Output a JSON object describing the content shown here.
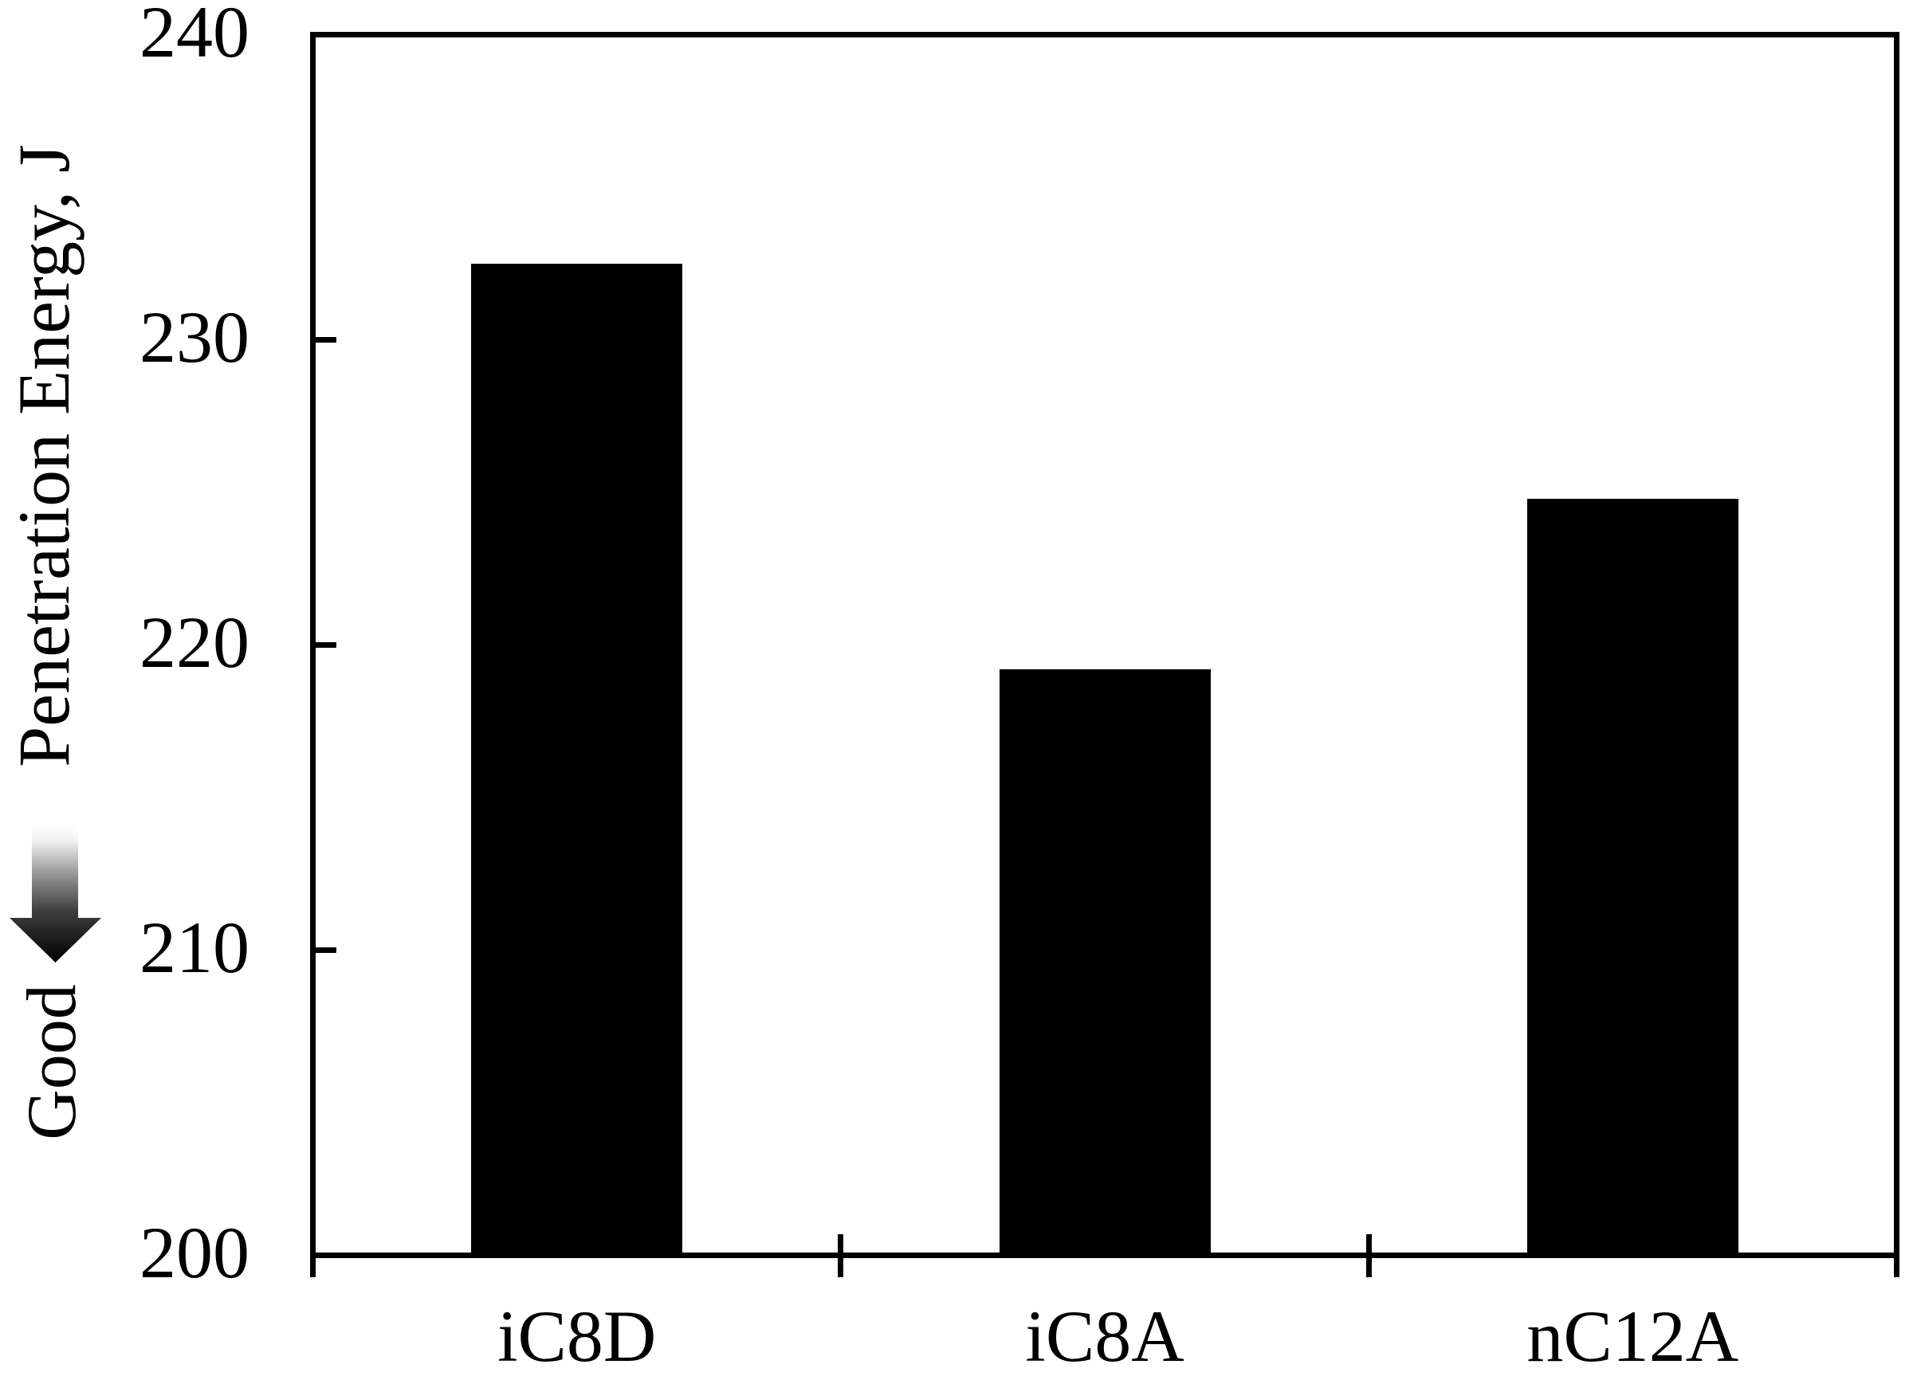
{
  "chart_data": {
    "type": "bar",
    "categories": [
      "iC8D",
      "iC8A",
      "nC12A"
    ],
    "values": [
      232.5,
      219.2,
      224.8
    ],
    "title": "",
    "xlabel": "",
    "ylabel": "Penetration Energy, J",
    "ylim": [
      200,
      240
    ],
    "yticks": [
      240,
      230,
      220,
      210,
      200
    ],
    "grid": false,
    "legend": false,
    "bar_color": "#000000",
    "background_color": "#ffffff",
    "annotation": {
      "text": "Good",
      "icon": "down-arrow-icon"
    }
  }
}
